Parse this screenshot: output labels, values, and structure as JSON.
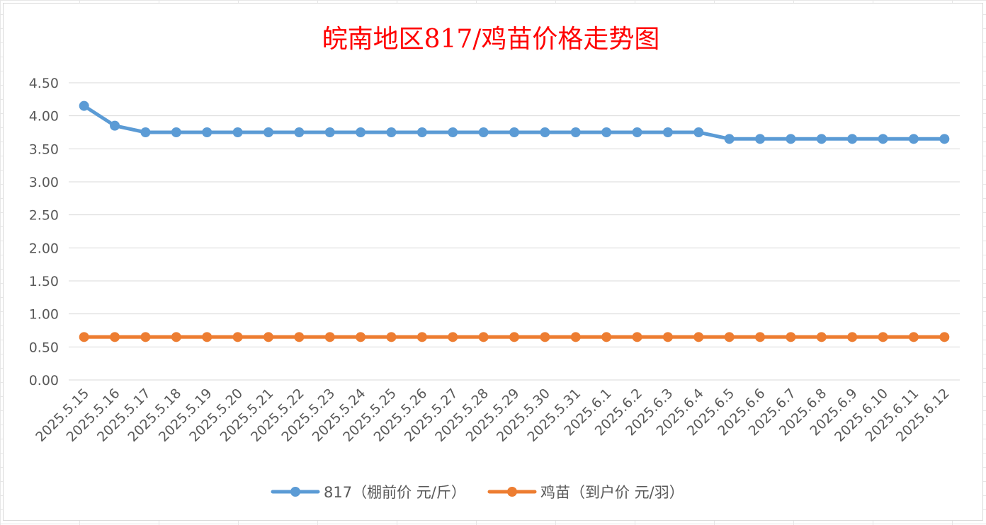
{
  "chart_data": {
    "type": "line",
    "title": "皖南地区817/鸡苗价格走势图",
    "xlabel": "",
    "ylabel": "",
    "categories": [
      "2025.5.15",
      "2025.5.16",
      "2025.5.17",
      "2025.5.18",
      "2025.5.19",
      "2025.5.20",
      "2025.5.21",
      "2025.5.22",
      "2025.5.23",
      "2025.5.24",
      "2025.5.25",
      "2025.5.26",
      "2025.5.27",
      "2025.5.28",
      "2025.5.29",
      "2025.5.30",
      "2025.5.31",
      "2025.6.1",
      "2025.6.2",
      "2025.6.3",
      "2025.6.4",
      "2025.6.5",
      "2025.6.6",
      "2025.6.7",
      "2025.6.8",
      "2025.6.9",
      "2025.6.10",
      "2025.6.11",
      "2025.6.12"
    ],
    "y_ticks": [
      "0.00",
      "0.50",
      "1.00",
      "1.50",
      "2.00",
      "2.50",
      "3.00",
      "3.50",
      "4.00",
      "4.50"
    ],
    "ylim": [
      0,
      4.5
    ],
    "grid": true,
    "legend_position": "bottom",
    "series": [
      {
        "name": "817（棚前价 元/斤）",
        "color": "#5b9bd5",
        "values": [
          4.15,
          3.85,
          3.75,
          3.75,
          3.75,
          3.75,
          3.75,
          3.75,
          3.75,
          3.75,
          3.75,
          3.75,
          3.75,
          3.75,
          3.75,
          3.75,
          3.75,
          3.75,
          3.75,
          3.75,
          3.75,
          3.65,
          3.65,
          3.65,
          3.65,
          3.65,
          3.65,
          3.65,
          3.65
        ]
      },
      {
        "name": "鸡苗（到户价 元/羽）",
        "color": "#ed7d31",
        "values": [
          0.65,
          0.65,
          0.65,
          0.65,
          0.65,
          0.65,
          0.65,
          0.65,
          0.65,
          0.65,
          0.65,
          0.65,
          0.65,
          0.65,
          0.65,
          0.65,
          0.65,
          0.65,
          0.65,
          0.65,
          0.65,
          0.65,
          0.65,
          0.65,
          0.65,
          0.65,
          0.65,
          0.65,
          0.65
        ]
      }
    ]
  }
}
